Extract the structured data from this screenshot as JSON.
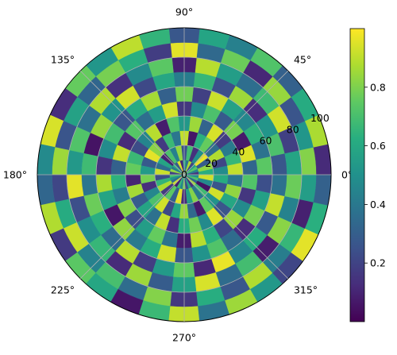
{
  "chart_data": {
    "type": "heatmap",
    "projection": "polar",
    "title": "",
    "theta_tick_labels": [
      "0°",
      "45°",
      "90°",
      "135°",
      "180°",
      "225°",
      "270°",
      "315°"
    ],
    "radial_tick_values": [
      0,
      20,
      40,
      60,
      80,
      100
    ],
    "radial_tick_labels": [
      "0",
      "20",
      "40",
      "60",
      "80",
      "100"
    ],
    "rlim": [
      0,
      100
    ],
    "grid": true,
    "theta_bins": 30,
    "radial_bins": 10,
    "colormap": "viridis",
    "colorbar": {
      "placement": "right",
      "range": [
        0.0,
        1.0
      ],
      "tick_values": [
        0.2,
        0.4,
        0.6,
        0.8
      ],
      "tick_labels": [
        "0.2",
        "0.4",
        "0.6",
        "0.8"
      ]
    },
    "values": [
      [
        0.15,
        0.62,
        0.48,
        0.91,
        0.33,
        0.74,
        0.27,
        0.58,
        0.81,
        0.12
      ],
      [
        0.44,
        0.83,
        0.21,
        0.66,
        0.95,
        0.38,
        0.71,
        0.19,
        0.52,
        0.87
      ],
      [
        0.73,
        0.29,
        0.88,
        0.41,
        0.07,
        0.64,
        0.52,
        0.93,
        0.26,
        0.61
      ],
      [
        0.56,
        0.97,
        0.35,
        0.18,
        0.79,
        0.46,
        0.13,
        0.68,
        0.84,
        0.31
      ],
      [
        0.21,
        0.49,
        0.76,
        0.94,
        0.28,
        0.57,
        0.85,
        0.36,
        0.11,
        0.72
      ],
      [
        0.88,
        0.14,
        0.63,
        0.32,
        0.71,
        0.92,
        0.24,
        0.55,
        0.77,
        0.43
      ],
      [
        0.37,
        0.69,
        0.06,
        0.85,
        0.47,
        0.19,
        0.66,
        0.89,
        0.34,
        0.58
      ],
      [
        0.62,
        0.25,
        0.91,
        0.53,
        0.16,
        0.78,
        0.42,
        0.09,
        0.96,
        0.27
      ],
      [
        0.11,
        0.84,
        0.39,
        0.72,
        0.93,
        0.31,
        0.59,
        0.74,
        0.18,
        0.65
      ],
      [
        0.95,
        0.43,
        0.67,
        0.08,
        0.55,
        0.86,
        0.22,
        0.47,
        0.63,
        0.9
      ],
      [
        0.28,
        0.71,
        0.17,
        0.89,
        0.36,
        0.61,
        0.93,
        0.14,
        0.79,
        0.52
      ],
      [
        0.64,
        0.09,
        0.82,
        0.45,
        0.73,
        0.27,
        0.51,
        0.88,
        0.33,
        0.76
      ],
      [
        0.41,
        0.58,
        0.96,
        0.23,
        0.12,
        0.69,
        0.84,
        0.37,
        0.57,
        0.13
      ],
      [
        0.83,
        0.36,
        0.28,
        0.67,
        0.91,
        0.48,
        0.05,
        0.72,
        0.26,
        0.94
      ],
      [
        0.19,
        0.92,
        0.54,
        0.76,
        0.31,
        0.15,
        0.68,
        0.53,
        0.85,
        0.47
      ],
      [
        0.7,
        0.23,
        0.79,
        0.1,
        0.64,
        0.87,
        0.39,
        0.96,
        0.21,
        0.33
      ],
      [
        0.52,
        0.65,
        0.13,
        0.86,
        0.42,
        0.58,
        0.77,
        0.24,
        0.61,
        0.88
      ],
      [
        0.35,
        0.87,
        0.46,
        0.29,
        0.81,
        0.06,
        0.63,
        0.49,
        0.92,
        0.17
      ],
      [
        0.92,
        0.17,
        0.71,
        0.58,
        0.24,
        0.83,
        0.35,
        0.66,
        0.44,
        0.74
      ],
      [
        0.08,
        0.74,
        0.93,
        0.37,
        0.55,
        0.41,
        0.89,
        0.12,
        0.7,
        0.59
      ],
      [
        0.67,
        0.31,
        0.22,
        0.91,
        0.76,
        0.62,
        0.18,
        0.85,
        0.35,
        0.06
      ],
      [
        0.45,
        0.96,
        0.59,
        0.14,
        0.38,
        0.93,
        0.54,
        0.29,
        0.81,
        0.67
      ],
      [
        0.79,
        0.12,
        0.84,
        0.62,
        0.08,
        0.27,
        0.75,
        0.57,
        0.16,
        0.91
      ],
      [
        0.23,
        0.56,
        0.34,
        0.78,
        0.89,
        0.51,
        0.11,
        0.94,
        0.62,
        0.38
      ],
      [
        0.6,
        0.81,
        0.07,
        0.47,
        0.63,
        0.72,
        0.97,
        0.35,
        0.27,
        0.85
      ],
      [
        0.14,
        0.39,
        0.75,
        0.95,
        0.21,
        0.35,
        0.46,
        0.69,
        0.88,
        0.53
      ],
      [
        0.86,
        0.68,
        0.51,
        0.26,
        0.84,
        0.13,
        0.62,
        0.08,
        0.42,
        0.21
      ],
      [
        0.32,
        0.05,
        0.93,
        0.59,
        0.47,
        0.79,
        0.28,
        0.82,
        0.66,
        0.96
      ],
      [
        0.71,
        0.47,
        0.26,
        0.83,
        0.16,
        0.56,
        0.91,
        0.44,
        0.09,
        0.63
      ],
      [
        0.49,
        0.93,
        0.61,
        0.39,
        0.72,
        0.24,
        0.37,
        0.77,
        0.55,
        0.31
      ]
    ]
  }
}
